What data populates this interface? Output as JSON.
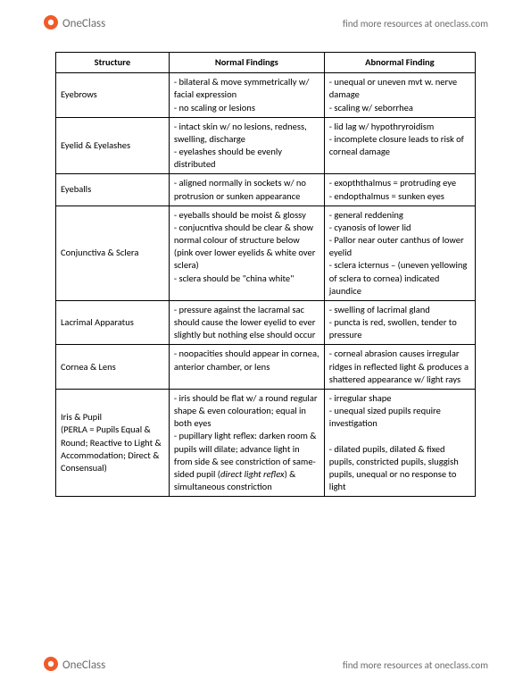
{
  "brand": {
    "name": "OneClass",
    "tagline": "find more resources at oneclass.com",
    "logo_circle_color": "#f15a29",
    "logo_inner_color": "#ffffff"
  },
  "table": {
    "headers": [
      "Structure",
      "Normal Findings",
      "Abnormal Finding"
    ],
    "rows": [
      {
        "structure": "Eyebrows",
        "normal": "- bilateral & move symmetrically w/ facial expression\n- no scaling or lesions",
        "abnormal": "- unequal or uneven mvt w. nerve damage\n- scaling w/ seborrhea"
      },
      {
        "structure": "Eyelid & Eyelashes",
        "normal": "- intact skin w/ no lesions, redness, swelling, discharge\n- eyelashes should be evenly distributed",
        "abnormal": "- lid lag w/ hypothryroidism\n- incomplete closure leads to risk of corneal damage"
      },
      {
        "structure": "Eyeballs",
        "normal": "- aligned normally in sockets w/ no protrusion or sunken appearance",
        "abnormal": "- exopththalmus = protruding eye\n- endopthalmus = sunken eyes"
      },
      {
        "structure": "Conjunctiva & Sclera",
        "normal": "- eyeballs should be moist & glossy\n- conjucntiva should be clear & show normal colour of structure below (pink over lower eyelids & white over sclera)\n- sclera should be \"china white\"",
        "abnormal": "- general reddening\n- cyanosis of lower lid\n- Pallor near outer canthus of lower eyelid\n- sclera icternus – (uneven yellowing of sclera to cornea) indicated jaundice"
      },
      {
        "structure": "Lacrimal Apparatus",
        "normal": "- pressure against the lacramal sac should cause the lower eyelid to ever slightly but nothing else should occur",
        "abnormal": "- swelling of lacrimal gland\n- puncta is red, swollen, tender to pressure"
      },
      {
        "structure": "Cornea & Lens",
        "normal": "- noopacities should appear in cornea, anterior chamber, or lens",
        "abnormal": "- corneal abrasion causes irregular ridges in reflected light & produces a shattered appearance w/ light rays"
      },
      {
        "structure": "Iris & Pupil\n(PERLA = Pupils Equal & Round; Reactive to Light & Accommodation; Direct & Consensual)",
        "normal_html": "- iris should be flat w/ a round regular shape & even colouration; equal in both eyes<br>- pupillary light reflex: darken room & pupils will dilate; advance light in from side & see constriction of same-sided pupil (<span class=\"italic\">direct light reflex</span>) & simultaneous constriction",
        "abnormal": "- irregular shape\n- unequal sized pupils require investigation\n\n- dilated pupils, dilated & fixed pupils, constricted pupils, sluggish pupils, unequal or no response to light"
      }
    ]
  }
}
